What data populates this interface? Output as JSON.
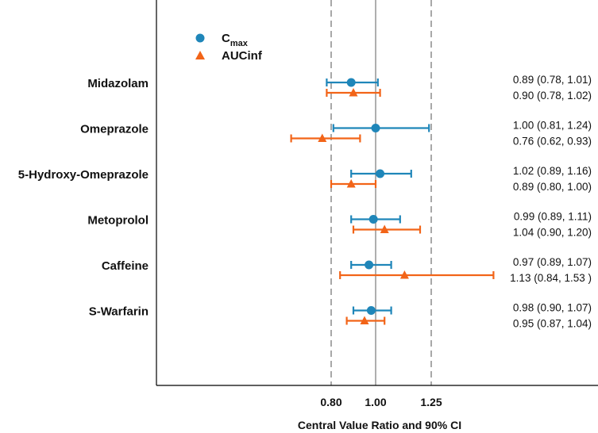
{
  "chart_data": {
    "type": "forest",
    "xlabel": "Central Value Ratio and 90% CI",
    "x_ticks": [
      {
        "value": 0.8,
        "label": "0.80"
      },
      {
        "value": 1.0,
        "label": "1.00"
      },
      {
        "value": 1.25,
        "label": "1.25"
      }
    ],
    "reference_lines": [
      {
        "value": 0.8,
        "style": "dashed"
      },
      {
        "value": 1.0,
        "style": "solid"
      },
      {
        "value": 1.25,
        "style": "dashed"
      }
    ],
    "legend": {
      "placement": "top-left",
      "items": [
        {
          "series": "cmax",
          "label_main": "C",
          "label_sub": "max",
          "marker": "circle",
          "color": "#1f86b9"
        },
        {
          "series": "aucinf",
          "label_main": "AUCinf",
          "label_sub": "",
          "marker": "triangle",
          "color": "#f26418"
        }
      ]
    },
    "series_colors": {
      "cmax": "#1f86b9",
      "aucinf": "#f26418"
    },
    "drugs": [
      {
        "name": "Midazolam",
        "cmax": {
          "point": 0.89,
          "lo": 0.78,
          "hi": 1.01,
          "label": "0.89 (0.78, 1.01)"
        },
        "aucinf": {
          "point": 0.9,
          "lo": 0.78,
          "hi": 1.02,
          "label": "0.90 (0.78, 1.02)"
        }
      },
      {
        "name": "Omeprazole",
        "cmax": {
          "point": 1.0,
          "lo": 0.81,
          "hi": 1.24,
          "label": "1.00 (0.81, 1.24)"
        },
        "aucinf": {
          "point": 0.76,
          "lo": 0.62,
          "hi": 0.93,
          "label": "0.76 (0.62, 0.93)"
        }
      },
      {
        "name": "5-Hydroxy-Omeprazole",
        "cmax": {
          "point": 1.02,
          "lo": 0.89,
          "hi": 1.16,
          "label": "1.02 (0.89, 1.16)"
        },
        "aucinf": {
          "point": 0.89,
          "lo": 0.8,
          "hi": 1.0,
          "label": "0.89 (0.80, 1.00)"
        }
      },
      {
        "name": "Metoprolol",
        "cmax": {
          "point": 0.99,
          "lo": 0.89,
          "hi": 1.11,
          "label": "0.99 (0.89, 1.11)"
        },
        "aucinf": {
          "point": 1.04,
          "lo": 0.9,
          "hi": 1.2,
          "label": "1.04 (0.90, 1.20)"
        }
      },
      {
        "name": "Caffeine",
        "cmax": {
          "point": 0.97,
          "lo": 0.89,
          "hi": 1.07,
          "label": "0.97 (0.89, 1.07)"
        },
        "aucinf": {
          "point": 1.13,
          "lo": 0.84,
          "hi": 1.53,
          "label": "1.13 (0.84, 1.53 )"
        }
      },
      {
        "name": "S-Warfarin",
        "cmax": {
          "point": 0.98,
          "lo": 0.9,
          "hi": 1.07,
          "label": "0.98 (0.90, 1.07)"
        },
        "aucinf": {
          "point": 0.95,
          "lo": 0.87,
          "hi": 1.04,
          "label": "0.95 (0.87, 1.04)"
        }
      }
    ]
  }
}
